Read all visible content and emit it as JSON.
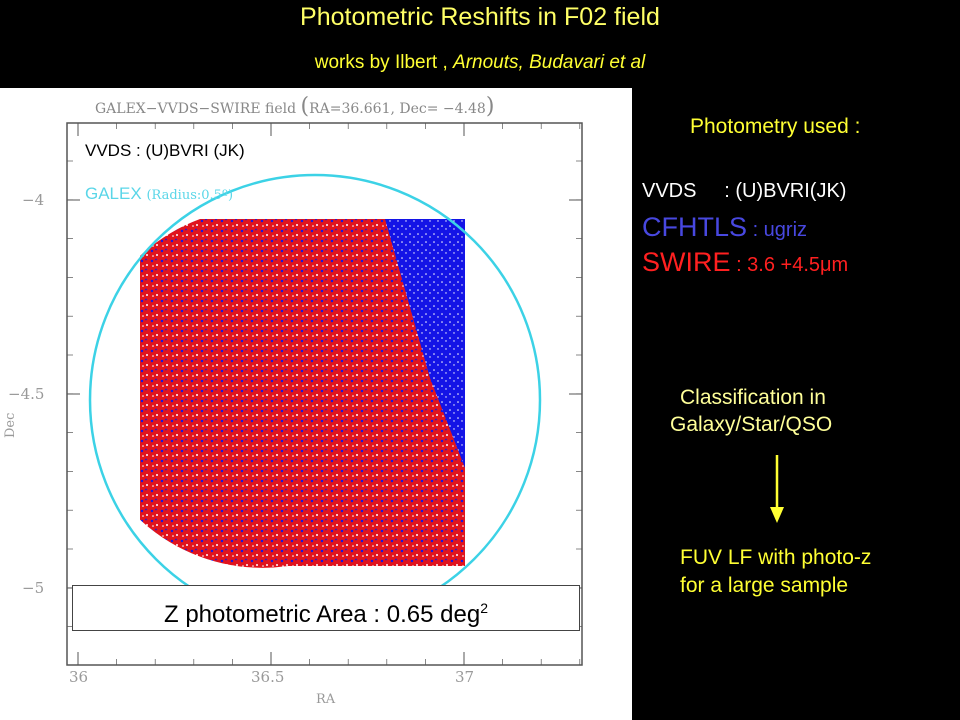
{
  "header": {
    "title": "Photometric Reshifts in F02 field",
    "subtitle_prefix": "works by  Ilbert , ",
    "subtitle_italic": "Arnouts, Budavari  et al"
  },
  "figure": {
    "title_prefix": "GALEX−VVDS−SWIRE field",
    "title_paren_open": "(",
    "title_coords": "RA=36.661, Dec= −4.48",
    "title_paren_close": ")",
    "vvds_label": "VVDS   : (U)BVRI (JK)",
    "galex_label": "GALEX",
    "galex_radius": "(Radius:0.5º)",
    "xlabel": "RA",
    "ylabel": "Dec",
    "x_ticks": [
      "36",
      "36.5",
      "37"
    ],
    "y_ticks": [
      "−4",
      "−4.5",
      "−5"
    ],
    "area_text": "Z photometric Area : 0.65 deg",
    "area_sup": "2",
    "colors": {
      "red": "#e0141e",
      "blue": "#1414e6",
      "circle": "#3cd2e6"
    }
  },
  "sidebar": {
    "photometry_title": "Photometry used :",
    "vvds_line": "VVDS     : (U)BVRI(JK)",
    "cfhtls_name": "CFHTLS",
    "cfhtls_bands": " : ugriz",
    "swire_name": "SWIRE",
    "swire_bands": "  : 3.6 +4.5μm",
    "classification_line1": "Classification in",
    "classification_line2": "Galaxy/Star/QSO",
    "fuv_line1": "FUV LF with photo-z",
    "fuv_line2": "for a large sample"
  }
}
